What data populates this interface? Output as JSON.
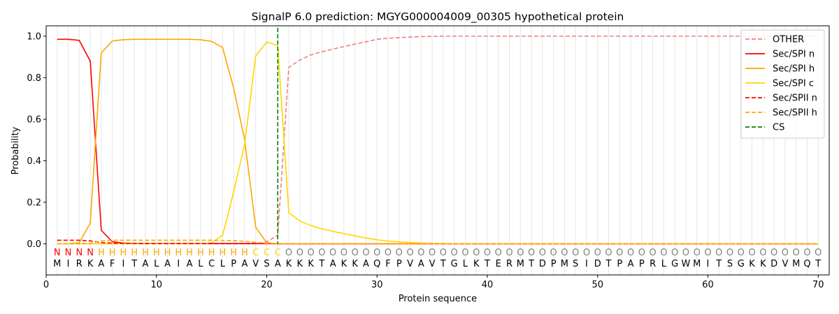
{
  "chart_data": {
    "type": "line",
    "title": "SignalP 6.0 prediction: MGYG000004009_00305 hypothetical protein",
    "xlabel": "Protein sequence",
    "ylabel": "Probability",
    "xlim": [
      0,
      71
    ],
    "ylim": [
      -0.15,
      1.05
    ],
    "xticks": [
      0,
      10,
      20,
      30,
      40,
      50,
      60,
      70
    ],
    "yticks": [
      0.0,
      0.2,
      0.4,
      0.6,
      0.8,
      1.0
    ],
    "xtick_labels": [
      "0",
      "10",
      "20",
      "30",
      "40",
      "50",
      "60",
      "70"
    ],
    "ytick_labels": [
      "0.0",
      "0.2",
      "0.4",
      "0.6",
      "0.8",
      "1.0"
    ],
    "grid": "vertical lines at each residue",
    "legend_position": "top-right",
    "sequence": [
      "M",
      "I",
      "R",
      "K",
      "A",
      "F",
      "I",
      "T",
      "A",
      "L",
      "A",
      "I",
      "A",
      "L",
      "C",
      "L",
      "P",
      "A",
      "V",
      "S",
      "A",
      "K",
      "K",
      "K",
      "T",
      "A",
      "K",
      "K",
      "A",
      "Q",
      "F",
      "P",
      "V",
      "A",
      "V",
      "T",
      "G",
      "L",
      "K",
      "T",
      "E",
      "R",
      "M",
      "T",
      "D",
      "P",
      "M",
      "S",
      "I",
      "D",
      "T",
      "P",
      "A",
      "P",
      "R",
      "L",
      "G",
      "W",
      "M",
      "I",
      "T",
      "S",
      "G",
      "K",
      "K",
      "D",
      "V",
      "M",
      "Q",
      "T"
    ],
    "region_labels": [
      "N",
      "N",
      "N",
      "N",
      "H",
      "H",
      "H",
      "H",
      "H",
      "H",
      "H",
      "H",
      "H",
      "H",
      "H",
      "H",
      "H",
      "H",
      "C",
      "C",
      "C",
      "O",
      "O",
      "O",
      "O",
      "O",
      "O",
      "O",
      "O",
      "O",
      "O",
      "O",
      "O",
      "O",
      "O",
      "O",
      "O",
      "O",
      "O",
      "O",
      "O",
      "O",
      "O",
      "O",
      "O",
      "O",
      "O",
      "O",
      "O",
      "O",
      "O",
      "O",
      "O",
      "O",
      "O",
      "O",
      "O",
      "O",
      "O",
      "O",
      "O",
      "O",
      "O",
      "O",
      "O",
      "O",
      "O",
      "O",
      "O",
      "O"
    ],
    "region_colors": {
      "N": "#ff0000",
      "H": "#ffa500",
      "C": "#ffd700",
      "O": "#808080"
    },
    "cleavage_site": 21,
    "series": [
      {
        "name": "OTHER",
        "color": "#f08080",
        "dash": "dashed",
        "values": [
          0.0,
          0.0,
          0.0,
          0.0,
          0.0,
          0.0,
          0.0,
          0.0,
          0.0,
          0.0,
          0.0,
          0.0,
          0.0,
          0.0,
          0.0,
          0.0,
          0.0,
          0.0,
          0.0,
          0.01,
          0.04,
          0.85,
          0.885,
          0.91,
          0.925,
          0.938,
          0.95,
          0.962,
          0.973,
          0.985,
          0.99,
          0.993,
          0.996,
          0.998,
          0.999,
          1.0,
          1.0,
          1.0,
          1.0,
          1.0,
          1.0,
          1.0,
          1.0,
          1.0,
          1.0,
          1.0,
          1.0,
          1.0,
          1.0,
          1.0,
          1.0,
          1.0,
          1.0,
          1.0,
          1.0,
          1.0,
          1.0,
          1.0,
          1.0,
          1.0,
          1.0,
          1.0,
          1.0,
          1.0,
          1.0,
          1.0,
          1.0,
          1.0,
          1.0,
          1.0
        ]
      },
      {
        "name": "Sec/SPI n",
        "color": "#ff0000",
        "dash": "solid",
        "values": [
          0.985,
          0.985,
          0.98,
          0.88,
          0.065,
          0.01,
          0.003,
          0.002,
          0.001,
          0.001,
          0.001,
          0.001,
          0.001,
          0.001,
          0.001,
          0.001,
          0.001,
          0.001,
          0.001,
          0.001,
          0.0,
          0.0,
          0.0,
          0.0,
          0.0,
          0.0,
          0.0,
          0.0,
          0.0,
          0.0,
          0.0,
          0.0,
          0.0,
          0.0,
          0.0,
          0.0,
          0.0,
          0.0,
          0.0,
          0.0,
          0.0,
          0.0,
          0.0,
          0.0,
          0.0,
          0.0,
          0.0,
          0.0,
          0.0,
          0.0,
          0.0,
          0.0,
          0.0,
          0.0,
          0.0,
          0.0,
          0.0,
          0.0,
          0.0,
          0.0,
          0.0,
          0.0,
          0.0,
          0.0,
          0.0,
          0.0,
          0.0,
          0.0,
          0.0,
          0.0
        ]
      },
      {
        "name": "Sec/SPI h",
        "color": "#ffa500",
        "dash": "solid",
        "values": [
          0.0,
          0.0,
          0.005,
          0.1,
          0.92,
          0.977,
          0.983,
          0.985,
          0.985,
          0.985,
          0.985,
          0.985,
          0.985,
          0.983,
          0.975,
          0.945,
          0.75,
          0.5,
          0.08,
          0.005,
          0.0,
          0.0,
          0.0,
          0.0,
          0.0,
          0.0,
          0.0,
          0.0,
          0.0,
          0.0,
          0.0,
          0.0,
          0.0,
          0.0,
          0.0,
          0.0,
          0.0,
          0.0,
          0.0,
          0.0,
          0.0,
          0.0,
          0.0,
          0.0,
          0.0,
          0.0,
          0.0,
          0.0,
          0.0,
          0.0,
          0.0,
          0.0,
          0.0,
          0.0,
          0.0,
          0.0,
          0.0,
          0.0,
          0.0,
          0.0,
          0.0,
          0.0,
          0.0,
          0.0,
          0.0,
          0.0,
          0.0,
          0.0,
          0.0,
          0.0
        ]
      },
      {
        "name": "Sec/SPI c",
        "color": "#ffd700",
        "dash": "solid",
        "values": [
          0.0,
          0.0,
          0.0,
          0.0,
          0.0,
          0.0,
          0.0,
          0.0,
          0.0,
          0.0,
          0.0,
          0.0,
          0.0,
          0.0,
          0.005,
          0.04,
          0.25,
          0.48,
          0.905,
          0.972,
          0.955,
          0.15,
          0.11,
          0.088,
          0.072,
          0.06,
          0.049,
          0.038,
          0.028,
          0.019,
          0.013,
          0.009,
          0.006,
          0.003,
          0.002,
          0.001,
          0.0,
          0.0,
          0.0,
          0.0,
          0.0,
          0.0,
          0.0,
          0.0,
          0.0,
          0.0,
          0.0,
          0.0,
          0.0,
          0.0,
          0.0,
          0.0,
          0.0,
          0.0,
          0.0,
          0.0,
          0.0,
          0.0,
          0.0,
          0.0,
          0.0,
          0.0,
          0.0,
          0.0,
          0.0,
          0.0,
          0.0,
          0.0,
          0.0,
          0.0
        ]
      },
      {
        "name": "Sec/SPII n",
        "color": "#ff0000",
        "dash": "dashed",
        "values": [
          0.017,
          0.017,
          0.017,
          0.014,
          0.006,
          0.003,
          0.002,
          0.002,
          0.001,
          0.001,
          0.001,
          0.001,
          0.001,
          0.001,
          0.001,
          0.001,
          0.001,
          0.001,
          0.001,
          0.0,
          0.0,
          0.0,
          0.0,
          0.0,
          0.0,
          0.0,
          0.0,
          0.0,
          0.0,
          0.0,
          0.0,
          0.0,
          0.0,
          0.0,
          0.0,
          0.0,
          0.0,
          0.0,
          0.0,
          0.0,
          0.0,
          0.0,
          0.0,
          0.0,
          0.0,
          0.0,
          0.0,
          0.0,
          0.0,
          0.0,
          0.0,
          0.0,
          0.0,
          0.0,
          0.0,
          0.0,
          0.0,
          0.0,
          0.0,
          0.0,
          0.0,
          0.0,
          0.0,
          0.0,
          0.0,
          0.0,
          0.0,
          0.0,
          0.0,
          0.0
        ]
      },
      {
        "name": "Sec/SPII h",
        "color": "#ffa500",
        "dash": "dashed",
        "values": [
          0.0,
          0.0,
          0.0,
          0.002,
          0.014,
          0.017,
          0.017,
          0.017,
          0.017,
          0.017,
          0.017,
          0.017,
          0.017,
          0.017,
          0.017,
          0.016,
          0.015,
          0.012,
          0.006,
          0.002,
          0.001,
          0.0,
          0.0,
          0.0,
          0.0,
          0.0,
          0.0,
          0.0,
          0.0,
          0.0,
          0.0,
          0.0,
          0.0,
          0.0,
          0.0,
          0.0,
          0.0,
          0.0,
          0.0,
          0.0,
          0.0,
          0.0,
          0.0,
          0.0,
          0.0,
          0.0,
          0.0,
          0.0,
          0.0,
          0.0,
          0.0,
          0.0,
          0.0,
          0.0,
          0.0,
          0.0,
          0.0,
          0.0,
          0.0,
          0.0,
          0.0,
          0.0,
          0.0,
          0.0,
          0.0,
          0.0,
          0.0,
          0.0,
          0.0,
          0.0
        ]
      }
    ],
    "cs_legend": {
      "name": "CS",
      "color": "#008000",
      "dash": "dashed"
    }
  }
}
